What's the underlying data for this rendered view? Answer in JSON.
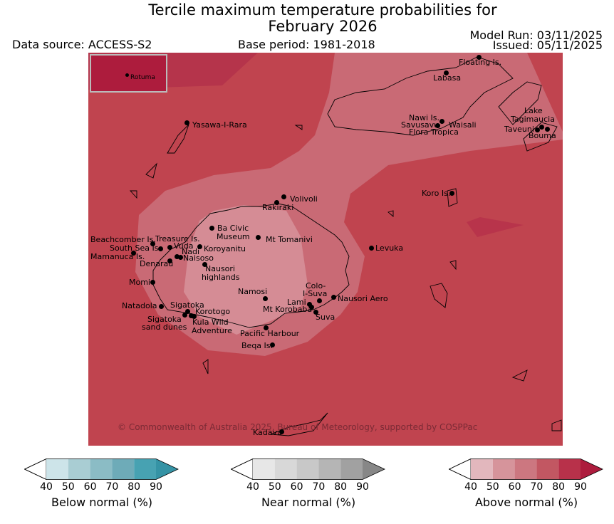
{
  "header": {
    "title_line1": "Tercile maximum temperature probabilities for",
    "title_line2": "February 2026",
    "data_source": "Data source: ACCESS-S2",
    "base_period": "Base period: 1981-2018",
    "model_run": "Model Run: 03/11/2025",
    "issued": "Issued: 05/11/2025"
  },
  "map": {
    "inset_label": "Rotuma",
    "copyright": "© Commonwealth of Australia 2025, Bureau of Meteorology, supported by COSPPac",
    "zone_colors": {
      "above_70_80": "#c0444f",
      "above_80_90": "#b5304a",
      "above_60_70": "#c96a75",
      "above_50_60": "#d68d95"
    },
    "places": [
      "Floating Is.",
      "Labasa",
      "Yasawa-I-Rara",
      "Nawi Is.",
      "Savusavu",
      "Waisali",
      "Flora Tropica",
      "Lake",
      "Tagimaucia",
      "Taveuni",
      "Bouma",
      "Volivoli",
      "Rakiraki",
      "Koro Is.",
      "Ba Civic",
      "Museum",
      "Mt Tomanivi",
      "Levuka",
      "Beachcomber Is.",
      "Treasure Is.",
      "South Sea Is.",
      "Vuda",
      "Mamanuca Is.",
      "Nadi",
      "Naisoso",
      "Koroyanitu",
      "Denarau",
      "Nausori",
      "highlands",
      "Momi",
      "Namosi",
      "Colo-",
      "I-Suva",
      "Nausori Aero",
      "Lami",
      "Mt Korobaba",
      "Suva",
      "Natadola",
      "Sigatoka",
      "Korotogo",
      "Sigatoka",
      "sand dunes",
      "Kula Wild",
      "Adventure",
      "Pacific Harbour",
      "Beqa Is.",
      "Kadavu"
    ]
  },
  "legends": [
    {
      "title": "Below normal (%)",
      "ticks": [
        "40",
        "50",
        "60",
        "70",
        "80",
        "90"
      ],
      "colors": [
        "#cde4e9",
        "#a9cdd3",
        "#8bbcc5",
        "#6eabb8",
        "#47a2b2",
        "#3593a5"
      ]
    },
    {
      "title": "Near normal (%)",
      "ticks": [
        "40",
        "50",
        "60",
        "70",
        "80",
        "90"
      ],
      "colors": [
        "#e7e7e7",
        "#d8d8d8",
        "#c8c8c8",
        "#b5b5b5",
        "#a1a1a1",
        "#878787"
      ]
    },
    {
      "title": "Above normal (%)",
      "ticks": [
        "40",
        "50",
        "60",
        "70",
        "80",
        "90"
      ],
      "colors": [
        "#e2b7bd",
        "#d6949b",
        "#cc7780",
        "#c25762",
        "#b8314a",
        "#ad1c3d"
      ]
    }
  ]
}
